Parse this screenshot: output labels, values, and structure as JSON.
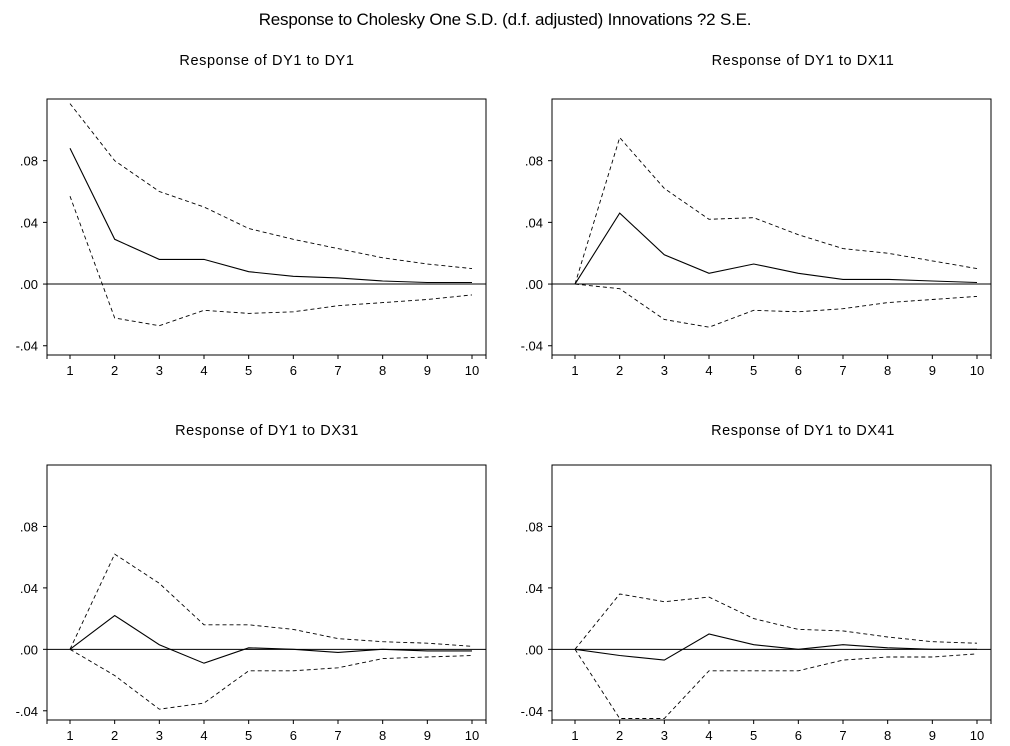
{
  "title": "Response to Cholesky One S.D. (d.f. adjusted) Innovations ?2 S.E.",
  "chart_data": [
    {
      "type": "line",
      "title": "Response of DY1 to DY1",
      "x": [
        1,
        2,
        3,
        4,
        5,
        6,
        7,
        8,
        9,
        10
      ],
      "ylim": [
        -0.046,
        0.12
      ],
      "yticks": [
        -0.04,
        0.0,
        0.04,
        0.08
      ],
      "ytick_labels": [
        "-.04",
        ".00",
        ".04",
        ".08"
      ],
      "grid": false,
      "series": [
        {
          "values": [
            0.088,
            0.029,
            0.016,
            0.016,
            0.008,
            0.005,
            0.004,
            0.002,
            0.001,
            0.001
          ],
          "style": "solid"
        },
        {
          "values": [
            0.117,
            0.08,
            0.06,
            0.05,
            0.036,
            0.029,
            0.023,
            0.017,
            0.013,
            0.01
          ],
          "style": "dashed"
        },
        {
          "values": [
            0.057,
            -0.022,
            -0.027,
            -0.017,
            -0.019,
            -0.018,
            -0.014,
            -0.012,
            -0.01,
            -0.007
          ],
          "style": "dashed"
        }
      ]
    },
    {
      "type": "line",
      "title": "Response of DY1 to DX11",
      "x": [
        1,
        2,
        3,
        4,
        5,
        6,
        7,
        8,
        9,
        10
      ],
      "ylim": [
        -0.046,
        0.12
      ],
      "yticks": [
        -0.04,
        0.0,
        0.04,
        0.08
      ],
      "ytick_labels": [
        "-.04",
        ".00",
        ".04",
        ".08"
      ],
      "grid": false,
      "series": [
        {
          "values": [
            0.0,
            0.046,
            0.019,
            0.007,
            0.013,
            0.007,
            0.003,
            0.003,
            0.002,
            0.001
          ],
          "style": "solid"
        },
        {
          "values": [
            0.0,
            0.095,
            0.062,
            0.042,
            0.043,
            0.032,
            0.023,
            0.02,
            0.015,
            0.01
          ],
          "style": "dashed"
        },
        {
          "values": [
            0.0,
            -0.003,
            -0.023,
            -0.028,
            -0.017,
            -0.018,
            -0.016,
            -0.012,
            -0.01,
            -0.008
          ],
          "style": "dashed"
        }
      ]
    },
    {
      "type": "line",
      "title": "Response of DY1 to DX31",
      "x": [
        1,
        2,
        3,
        4,
        5,
        6,
        7,
        8,
        9,
        10
      ],
      "ylim": [
        -0.046,
        0.12
      ],
      "yticks": [
        -0.04,
        0.0,
        0.04,
        0.08
      ],
      "ytick_labels": [
        "-.04",
        ".00",
        ".04",
        ".08"
      ],
      "grid": false,
      "series": [
        {
          "values": [
            0.0,
            0.022,
            0.003,
            -0.009,
            0.001,
            0.0,
            -0.002,
            0.0,
            -0.001,
            -0.001
          ],
          "style": "solid"
        },
        {
          "values": [
            0.0,
            0.062,
            0.043,
            0.016,
            0.016,
            0.013,
            0.007,
            0.005,
            0.004,
            0.002
          ],
          "style": "dashed"
        },
        {
          "values": [
            0.0,
            -0.017,
            -0.039,
            -0.035,
            -0.014,
            -0.014,
            -0.012,
            -0.006,
            -0.005,
            -0.004
          ],
          "style": "dashed"
        }
      ]
    },
    {
      "type": "line",
      "title": "Response of DY1 to DX41",
      "x": [
        1,
        2,
        3,
        4,
        5,
        6,
        7,
        8,
        9,
        10
      ],
      "ylim": [
        -0.046,
        0.12
      ],
      "yticks": [
        -0.04,
        0.0,
        0.04,
        0.08
      ],
      "ytick_labels": [
        "-.04",
        ".00",
        ".04",
        ".08"
      ],
      "grid": false,
      "series": [
        {
          "values": [
            0.0,
            -0.004,
            -0.007,
            0.01,
            0.003,
            0.0,
            0.003,
            0.001,
            0.0,
            0.0
          ],
          "style": "solid"
        },
        {
          "values": [
            0.0,
            0.036,
            0.031,
            0.034,
            0.02,
            0.013,
            0.012,
            0.008,
            0.005,
            0.004
          ],
          "style": "dashed"
        },
        {
          "values": [
            0.0,
            -0.045,
            -0.045,
            -0.014,
            -0.014,
            -0.014,
            -0.007,
            -0.005,
            -0.005,
            -0.003
          ],
          "style": "dashed"
        }
      ]
    }
  ]
}
